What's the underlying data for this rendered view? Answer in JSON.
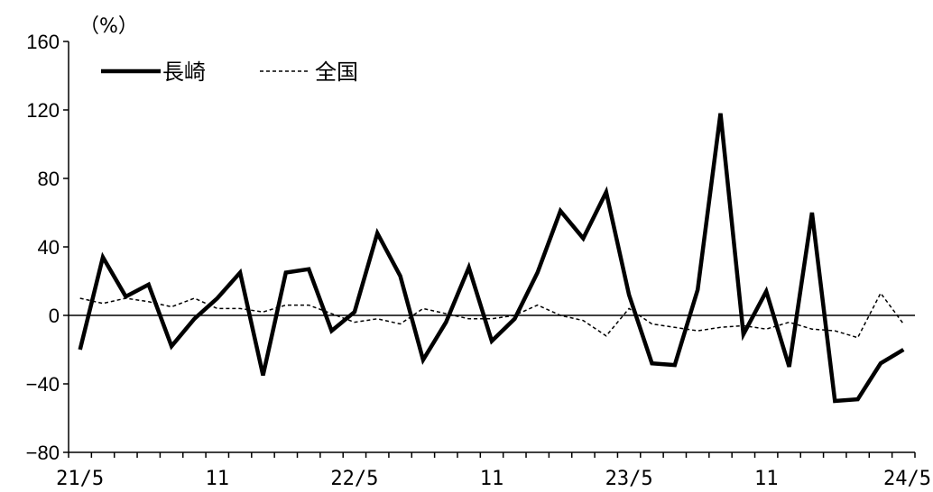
{
  "chart_data": {
    "type": "line",
    "unit_label": "（%）",
    "ylim": [
      -80,
      160
    ],
    "yticks": [
      -80,
      -40,
      0,
      40,
      80,
      120,
      160
    ],
    "grid": false,
    "legend_position": "top-left",
    "x": [
      "21/5",
      "21/6",
      "21/7",
      "21/8",
      "21/9",
      "21/10",
      "21/11",
      "21/12",
      "22/1",
      "22/2",
      "22/3",
      "22/4",
      "22/5",
      "22/6",
      "22/7",
      "22/8",
      "22/9",
      "22/10",
      "22/11",
      "22/12",
      "23/1",
      "23/2",
      "23/3",
      "23/4",
      "23/5",
      "23/6",
      "23/7",
      "23/8",
      "23/9",
      "23/10",
      "23/11",
      "23/12",
      "24/1",
      "24/2",
      "24/3",
      "24/4",
      "24/5"
    ],
    "xtick_labels": [
      {
        "index": 0,
        "label": "21/5"
      },
      {
        "index": 6,
        "label": "11"
      },
      {
        "index": 12,
        "label": "22/5"
      },
      {
        "index": 18,
        "label": "11"
      },
      {
        "index": 24,
        "label": "23/5"
      },
      {
        "index": 30,
        "label": "11"
      },
      {
        "index": 36,
        "label": "24/5"
      }
    ],
    "series": [
      {
        "name": "長崎",
        "style": "solid-thick",
        "color": "#000000",
        "values": [
          -20,
          34,
          11,
          18,
          -18,
          -2,
          10,
          25,
          -35,
          25,
          27,
          -9,
          2,
          48,
          23,
          -26,
          -4,
          28,
          -15,
          -2,
          25,
          61,
          45,
          72,
          12,
          -28,
          -29,
          15,
          118,
          -11,
          14,
          -30,
          60,
          -50,
          -49,
          -28,
          -20
        ]
      },
      {
        "name": "全国",
        "style": "dashed-thin",
        "color": "#000000",
        "values": [
          10,
          7,
          10,
          8,
          5,
          10,
          4,
          4,
          2,
          6,
          6,
          1,
          -4,
          -2,
          -5,
          4,
          1,
          -2,
          -2,
          0,
          6,
          0,
          -3,
          -12,
          4,
          -5,
          -7,
          -9,
          -7,
          -6,
          -8,
          -4,
          -8,
          -9,
          -13,
          13,
          -5
        ]
      }
    ]
  }
}
